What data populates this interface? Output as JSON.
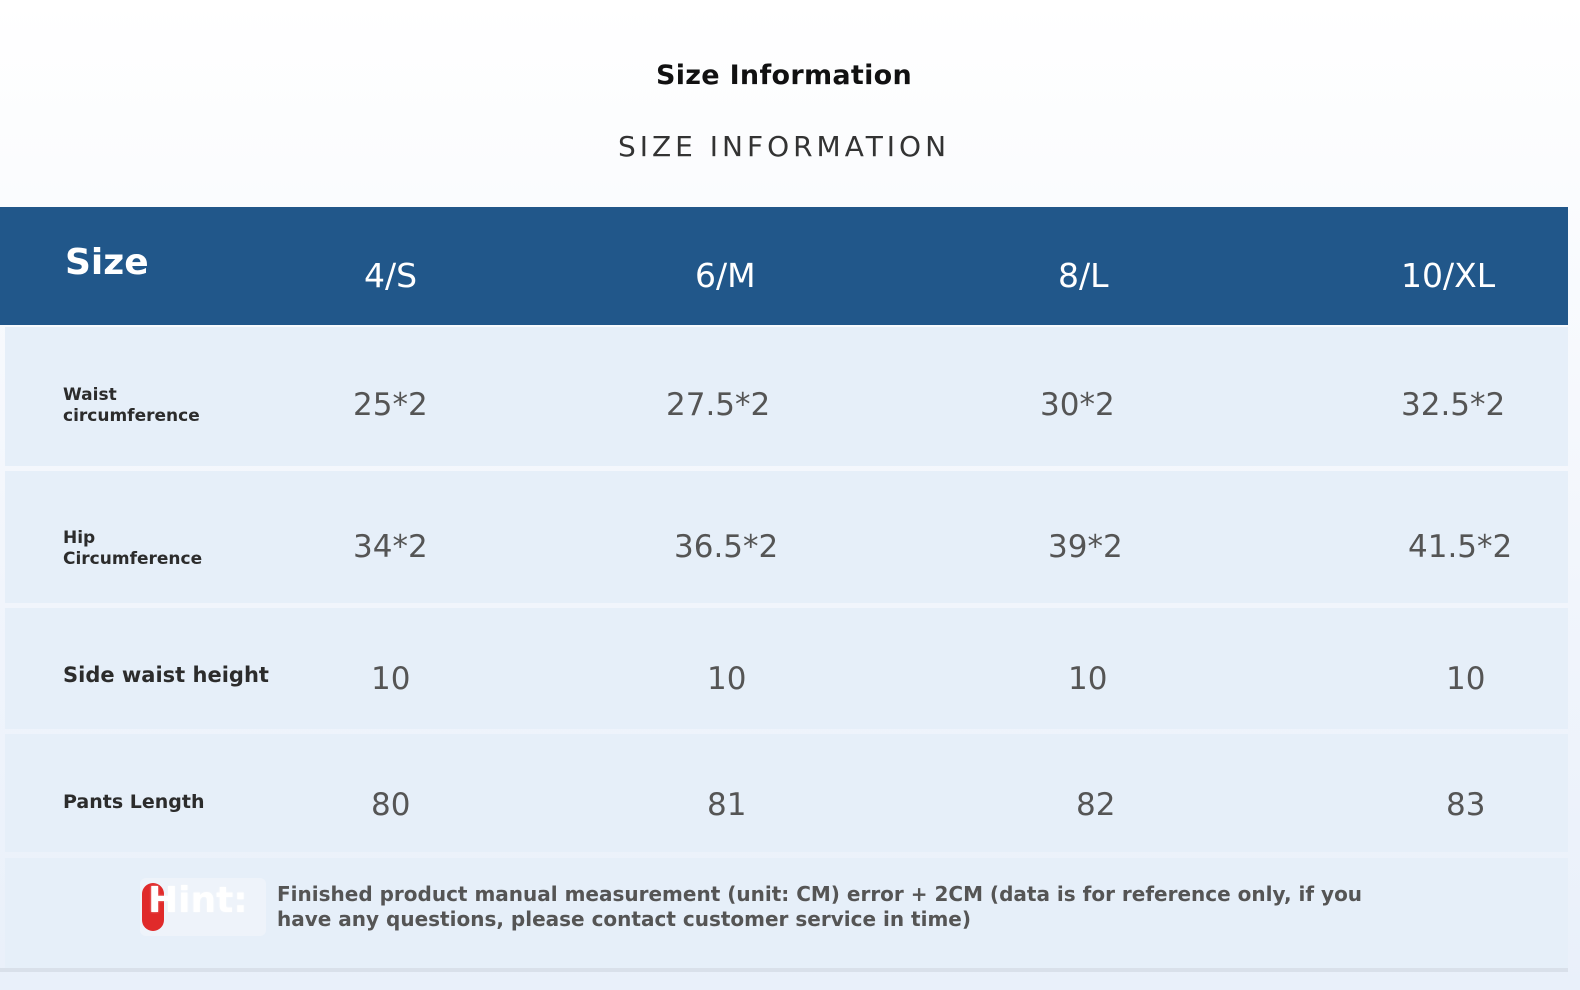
{
  "title": "Size Information",
  "subtitle": "SIZE INFORMATION",
  "header": {
    "size_label": "Size",
    "columns": [
      "4/S",
      "6/M",
      "8/L",
      "10/XL"
    ]
  },
  "rows": [
    {
      "label_line1": "Waist",
      "label_line2": "circumference",
      "values": [
        "25*2",
        "27.5*2",
        "30*2",
        "32.5*2"
      ]
    },
    {
      "label_line1": "Hip",
      "label_line2": "Circumference",
      "values": [
        "34*2",
        "36.5*2",
        "39*2",
        "41.5*2"
      ]
    },
    {
      "label": "Side waist height",
      "values": [
        "10",
        "10",
        "10",
        "10"
      ]
    },
    {
      "label": "Pants Length",
      "values": [
        "80",
        "81",
        "82",
        "83"
      ]
    }
  ],
  "hint": {
    "label": "Hint:",
    "text": "Finished product manual measurement (unit: CM) error + 2CM (data is for reference only, if you have any questions, please contact customer service in time)"
  },
  "colors": {
    "header_bg": "#21578a",
    "row_bg": "#e6eff9",
    "hint_marker": "#e02a2a"
  }
}
